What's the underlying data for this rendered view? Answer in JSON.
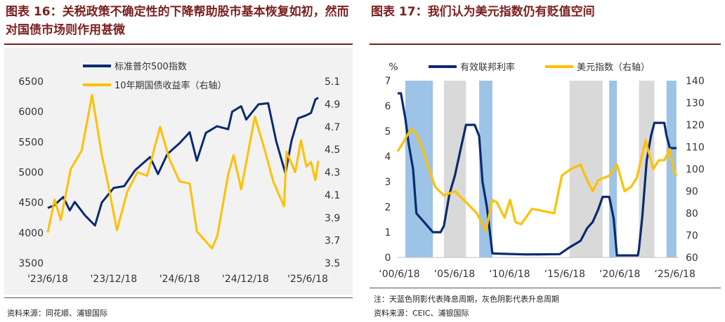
{
  "left": {
    "title_label": "图表",
    "title_number": "16",
    "title_text": "关税政策不确定性的下降帮助股市基本恢复如初，然而对国债市场则作用甚微",
    "source": "资料来源：同花顺、浦银国际"
  },
  "right": {
    "title_label": "图表",
    "title_number": "17",
    "title_text": "我们认为美元指数仍有贬值空间",
    "note": "注：天蓝色阴影代表降息周期，灰色阴影代表升息周期",
    "source": "资料来源：CEIC、浦银国际"
  },
  "colors": {
    "navy": "#0b2a6f",
    "gold": "#ffc000",
    "cut_shade": "#9dc3e6",
    "hike_shade": "#d9d9d9",
    "title_red": "#7a1f1f"
  },
  "chart_data": [
    {
      "type": "line",
      "title": "",
      "x_ticks": [
        "'23/6/18",
        "'23/12/18",
        "'24/6/18",
        "'24/12/18",
        "'25/6/18"
      ],
      "x_tick_dates": [
        "2023-06-18",
        "2023-12-18",
        "2024-06-18",
        "2024-12-18",
        "2025-06-18"
      ],
      "x_range": [
        "2023-06-18",
        "2025-07-10"
      ],
      "ylim_left": [
        3500,
        6500
      ],
      "yticks_left": [
        "6500",
        "6000",
        "5500",
        "5000",
        "4500",
        "4000",
        "3500"
      ],
      "ylim_right": [
        3.5,
        5.1
      ],
      "yticks_right": [
        "5.1",
        "4.9",
        "4.7",
        "4.5",
        "4.3",
        "4.1",
        "3.9",
        "3.7",
        "3.5"
      ],
      "legend_position": "top-center",
      "series": [
        {
          "name": "标准普尔500指数",
          "axis": "left",
          "color": "#0b2a6f",
          "x": [
            "2023-06-18",
            "2023-07-05",
            "2023-07-31",
            "2023-08-18",
            "2023-09-01",
            "2023-09-29",
            "2023-10-27",
            "2023-11-15",
            "2023-12-18",
            "2024-01-16",
            "2024-02-15",
            "2024-03-28",
            "2024-04-19",
            "2024-05-15",
            "2024-06-18",
            "2024-07-16",
            "2024-08-05",
            "2024-08-30",
            "2024-09-30",
            "2024-10-31",
            "2024-11-11",
            "2024-12-06",
            "2024-12-20",
            "2025-01-23",
            "2025-02-19",
            "2025-03-13",
            "2025-04-08",
            "2025-04-25",
            "2025-05-13",
            "2025-06-05",
            "2025-06-18",
            "2025-06-30",
            "2025-07-08"
          ],
          "values": [
            4410,
            4450,
            4590,
            4370,
            4510,
            4290,
            4120,
            4500,
            4740,
            4770,
            5030,
            5250,
            4970,
            5300,
            5480,
            5660,
            5190,
            5650,
            5760,
            5710,
            6000,
            6090,
            5870,
            6120,
            6140,
            5520,
            4980,
            5520,
            5890,
            5940,
            5980,
            6200,
            6230
          ]
        },
        {
          "name": "10年期国债收益率（右轴）",
          "axis": "right",
          "color": "#ffc000",
          "x": [
            "2023-06-18",
            "2023-07-07",
            "2023-07-24",
            "2023-08-21",
            "2023-09-20",
            "2023-10-19",
            "2023-11-15",
            "2023-12-01",
            "2023-12-27",
            "2024-01-25",
            "2024-02-22",
            "2024-03-20",
            "2024-04-25",
            "2024-05-20",
            "2024-06-18",
            "2024-07-16",
            "2024-08-05",
            "2024-09-16",
            "2024-10-01",
            "2024-10-31",
            "2024-11-15",
            "2024-12-06",
            "2025-01-13",
            "2025-02-10",
            "2025-03-05",
            "2025-04-04",
            "2025-04-11",
            "2025-05-05",
            "2025-05-21",
            "2025-06-05",
            "2025-06-18",
            "2025-06-30",
            "2025-07-08"
          ],
          "values": [
            3.77,
            4.06,
            3.88,
            4.33,
            4.49,
            4.98,
            4.45,
            4.22,
            3.79,
            4.13,
            4.3,
            4.27,
            4.7,
            4.42,
            4.22,
            4.2,
            3.78,
            3.63,
            3.74,
            4.28,
            4.45,
            4.15,
            4.79,
            4.49,
            4.22,
            4.0,
            4.48,
            4.3,
            4.58,
            4.35,
            4.39,
            4.23,
            4.4
          ]
        }
      ]
    },
    {
      "type": "line",
      "title": "",
      "y_unit_label": "%",
      "x_ticks": [
        "‘00/6/18",
        "‘05/6/18",
        "‘10/6/18",
        "‘15/6/18",
        "‘20/6/18",
        "‘25/6/18"
      ],
      "x_tick_years": [
        2000.46,
        2005.46,
        2010.46,
        2015.46,
        2020.46,
        2025.46
      ],
      "x_range": [
        2000.3,
        2025.8
      ],
      "ylim_left": [
        0,
        7
      ],
      "yticks_left": [
        "7",
        "6",
        "5",
        "4",
        "3",
        "2",
        "1",
        "0"
      ],
      "ylim_right": [
        60,
        140
      ],
      "yticks_right": [
        "140",
        "130",
        "120",
        "110",
        "100",
        "90",
        "80",
        "70",
        "60"
      ],
      "legend_position": "top-center",
      "shading": [
        {
          "kind": "cut",
          "start": 2001.0,
          "end": 2003.5
        },
        {
          "kind": "hike",
          "start": 2004.5,
          "end": 2006.5
        },
        {
          "kind": "cut",
          "start": 2007.7,
          "end": 2008.9
        },
        {
          "kind": "hike",
          "start": 2015.9,
          "end": 2018.9
        },
        {
          "kind": "cut",
          "start": 2019.5,
          "end": 2020.2
        },
        {
          "kind": "hike",
          "start": 2022.2,
          "end": 2023.6
        },
        {
          "kind": "cut",
          "start": 2024.7,
          "end": 2025.6
        }
      ],
      "series": [
        {
          "name": "有效联邦利率",
          "axis": "left",
          "color": "#0b2a6f",
          "x": [
            2000.3,
            2000.6,
            2001.0,
            2001.3,
            2001.7,
            2002.0,
            2002.9,
            2003.5,
            2004.2,
            2004.5,
            2005.0,
            2005.5,
            2006.0,
            2006.5,
            2007.3,
            2007.7,
            2008.0,
            2008.4,
            2008.9,
            2009.5,
            2012.0,
            2015.0,
            2015.9,
            2016.9,
            2017.5,
            2018.0,
            2018.5,
            2018.9,
            2019.5,
            2019.9,
            2020.2,
            2021.0,
            2022.1,
            2022.2,
            2022.5,
            2022.9,
            2023.3,
            2023.6,
            2024.5,
            2024.7,
            2025.0,
            2025.6
          ],
          "values": [
            6.5,
            6.5,
            5.5,
            4.5,
            3.5,
            1.75,
            1.3,
            1.0,
            1.0,
            1.25,
            2.5,
            3.25,
            4.25,
            5.25,
            5.25,
            4.8,
            3.0,
            2.0,
            0.16,
            0.15,
            0.12,
            0.13,
            0.4,
            0.66,
            1.16,
            1.4,
            1.9,
            2.4,
            2.4,
            1.55,
            0.08,
            0.08,
            0.08,
            0.33,
            1.58,
            3.83,
            4.83,
            5.33,
            5.33,
            4.83,
            4.33,
            4.33
          ]
        },
        {
          "name": "美元指数（右轴）",
          "axis": "right",
          "color": "#ffc000",
          "x": [
            2000.3,
            2000.8,
            2001.5,
            2002.0,
            2002.5,
            2003.0,
            2003.7,
            2004.5,
            2005.5,
            2006.5,
            2007.5,
            2008.3,
            2008.9,
            2009.3,
            2010.0,
            2010.5,
            2011.0,
            2011.5,
            2012.5,
            2013.5,
            2014.5,
            2015.2,
            2016.0,
            2016.9,
            2017.5,
            2018.0,
            2018.5,
            2019.5,
            2020.2,
            2020.9,
            2021.5,
            2022.0,
            2022.8,
            2023.5,
            2024.0,
            2024.5,
            2025.0,
            2025.3,
            2025.6
          ],
          "values": [
            108,
            112,
            118,
            116,
            110,
            102,
            92,
            88,
            90,
            85,
            80,
            72,
            86,
            85,
            78,
            86,
            76,
            75,
            82,
            81,
            80,
            97,
            100,
            102,
            95,
            90,
            95,
            97,
            102,
            90,
            92,
            96,
            113,
            100,
            104,
            104,
            109,
            100,
            97
          ]
        }
      ]
    }
  ]
}
